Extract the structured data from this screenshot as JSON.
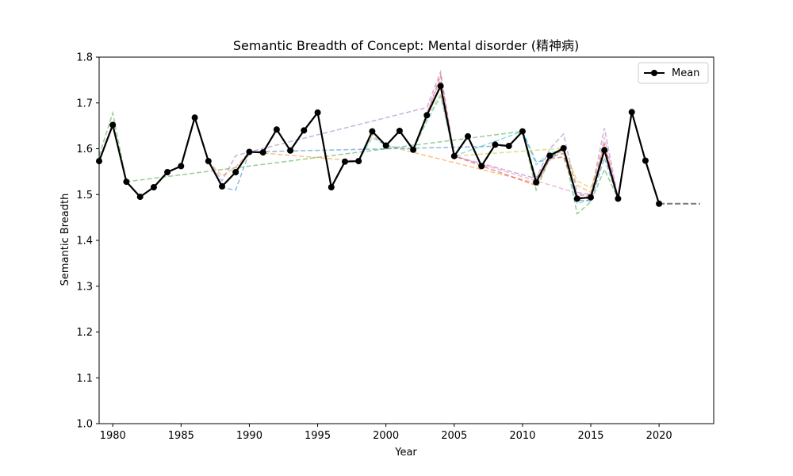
{
  "chart_data": {
    "type": "line",
    "title": "Semantic Breadth of Concept: Mental disorder (精神病)",
    "xlabel": "Year",
    "ylabel": "Semantic Breadth",
    "xlim": [
      1979,
      2024
    ],
    "ylim": [
      1.0,
      1.8
    ],
    "x_ticks": [
      1980,
      1985,
      1990,
      1995,
      2000,
      2005,
      2010,
      2015,
      2020
    ],
    "y_ticks": [
      "1.0",
      "1.1",
      "1.2",
      "1.3",
      "1.4",
      "1.5",
      "1.6",
      "1.7",
      "1.8"
    ],
    "grid": false,
    "legend": {
      "position": "top-right",
      "entries": [
        "Mean"
      ]
    },
    "mean_series": {
      "name": "Mean",
      "color": "#000000",
      "x": [
        1979,
        1980,
        1981,
        1982,
        1983,
        1984,
        1985,
        1986,
        1987,
        1988,
        1989,
        1990,
        1991,
        1992,
        1993,
        1994,
        1995,
        1996,
        1997,
        1998,
        1999,
        2000,
        2001,
        2002,
        2003,
        2004,
        2005,
        2006,
        2007,
        2008,
        2009,
        2010,
        2011,
        2012,
        2013,
        2014,
        2015,
        2016,
        2017,
        2018,
        2019,
        2020
      ],
      "y": [
        1.573,
        1.652,
        1.528,
        1.495,
        1.516,
        1.549,
        1.562,
        1.668,
        1.573,
        1.518,
        1.549,
        1.593,
        1.592,
        1.642,
        1.596,
        1.64,
        1.679,
        1.516,
        1.572,
        1.573,
        1.638,
        1.607,
        1.639,
        1.598,
        1.673,
        1.737,
        1.584,
        1.627,
        1.562,
        1.609,
        1.606,
        1.638,
        1.527,
        1.585,
        1.601,
        1.491,
        1.494,
        1.597,
        1.491,
        1.68,
        1.574,
        1.48
      ]
    },
    "extension_series": {
      "color": "#808080",
      "x": [
        2020,
        2023
      ],
      "y": [
        1.48,
        1.48
      ]
    },
    "variant_series": [
      {
        "color": "#2ca02c",
        "x": [
          1979,
          1980,
          1981,
          2010,
          2011,
          2012,
          2013,
          2014,
          2015,
          2016,
          2017,
          2018
        ],
        "y": [
          1.585,
          1.678,
          1.528,
          1.638,
          1.51,
          1.58,
          1.603,
          1.458,
          1.484,
          1.555,
          1.491,
          1.68
        ]
      },
      {
        "color": "#1f77b4",
        "x": [
          1987,
          1988,
          1989,
          1990,
          2009,
          2010,
          2011,
          2012,
          2013,
          2014,
          2015,
          2016,
          2017
        ],
        "y": [
          1.573,
          1.515,
          1.51,
          1.593,
          1.606,
          1.638,
          1.572,
          1.575,
          1.602,
          1.488,
          1.486,
          1.58,
          1.491
        ]
      },
      {
        "color": "#9467bd",
        "x": [
          1987,
          1988,
          1989,
          1990,
          2003,
          2004,
          2005,
          2011,
          2012,
          2013,
          2014,
          2015,
          2016,
          2017
        ],
        "y": [
          1.573,
          1.53,
          1.585,
          1.593,
          1.69,
          1.768,
          1.584,
          1.535,
          1.6,
          1.632,
          1.505,
          1.5,
          1.645,
          1.491
        ]
      },
      {
        "color": "#ff7f0e",
        "x": [
          1987,
          1988,
          1989,
          1990,
          1998,
          1999,
          2000,
          2011,
          2012,
          2013,
          2014,
          2015,
          2016,
          2017
        ],
        "y": [
          1.573,
          1.54,
          1.56,
          1.593,
          1.573,
          1.63,
          1.607,
          1.525,
          1.585,
          1.595,
          1.52,
          1.505,
          1.612,
          1.491
        ]
      },
      {
        "color": "#d62728",
        "x": [
          2002,
          2003,
          2004,
          2005,
          2011,
          2012,
          2013,
          2014,
          2015,
          2016,
          2017
        ],
        "y": [
          1.598,
          1.675,
          1.76,
          1.584,
          1.52,
          1.578,
          1.582,
          1.495,
          1.49,
          1.61,
          1.491
        ]
      },
      {
        "color": "#17becf",
        "x": [
          1998,
          1999,
          2000,
          2002,
          2003,
          2004,
          2005,
          2010,
          2011,
          2012,
          2013,
          2014,
          2015
        ],
        "y": [
          1.573,
          1.625,
          1.607,
          1.598,
          1.66,
          1.715,
          1.584,
          1.638,
          1.565,
          1.59,
          1.6,
          1.48,
          1.49
        ]
      },
      {
        "color": "#bcbd22",
        "x": [
          2002,
          2003,
          2004,
          2005,
          2013,
          2014,
          2015,
          2016
        ],
        "y": [
          1.598,
          1.665,
          1.72,
          1.584,
          1.601,
          1.53,
          1.515,
          1.597
        ]
      },
      {
        "color": "#8c564b",
        "x": [
          2010,
          2011,
          2012,
          2013,
          2014,
          2015
        ],
        "y": [
          1.638,
          1.535,
          1.582,
          1.59,
          1.498,
          1.5
        ]
      },
      {
        "color": "#e377c2",
        "x": [
          2003,
          2004,
          2005,
          2015,
          2016,
          2017
        ],
        "y": [
          1.68,
          1.75,
          1.584,
          1.494,
          1.625,
          1.491
        ]
      }
    ]
  }
}
